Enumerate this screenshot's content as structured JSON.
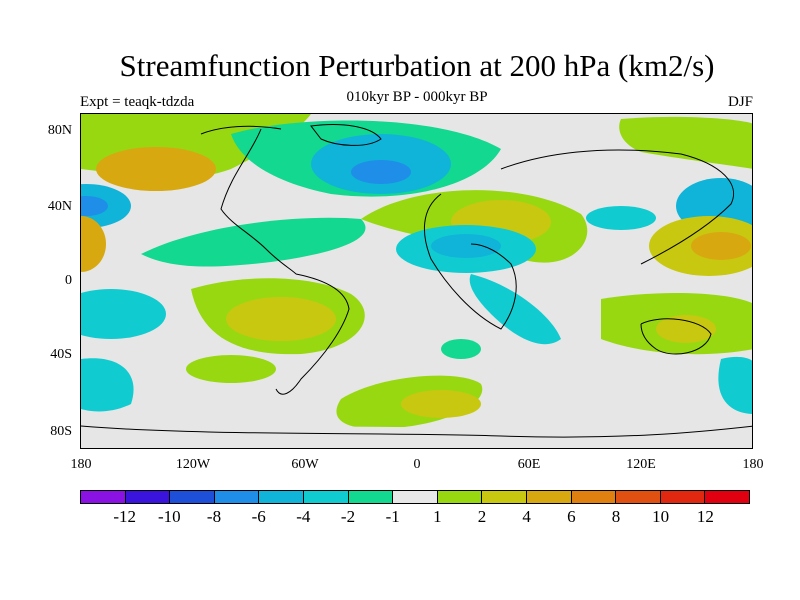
{
  "header": {
    "title": "Streamfunction Perturbation at 200 hPa (km2/s)",
    "subtitle": "010kyr BP - 000kyr BP",
    "left_string": "Expt = teaqk-tdzda",
    "right_string": "DJF"
  },
  "map": {
    "projection": "cylindrical equidistant",
    "lon_range": [
      -180,
      180
    ],
    "lat_range": [
      -90,
      90
    ],
    "background_color": "#e6e6e6",
    "lat_labels": [
      "80N",
      "40N",
      "0",
      "40S",
      "80S"
    ],
    "lon_labels": [
      "180",
      "120W",
      "60W",
      "0",
      "60E",
      "120E",
      "180"
    ]
  },
  "colorbar": {
    "labels": [
      "-12",
      "-10",
      "-8",
      "-6",
      "-4",
      "-2",
      "-1",
      "1",
      "2",
      "4",
      "6",
      "8",
      "10",
      "12"
    ],
    "colors": [
      "#8a13e4",
      "#3a13dc",
      "#1e4fd8",
      "#1e8ee8",
      "#10b4d8",
      "#10ccd0",
      "#12d890",
      "#e8e8e8",
      "#98d810",
      "#c8c810",
      "#d8a810",
      "#e08010",
      "#e05010",
      "#e02810",
      "#e00010"
    ]
  }
}
